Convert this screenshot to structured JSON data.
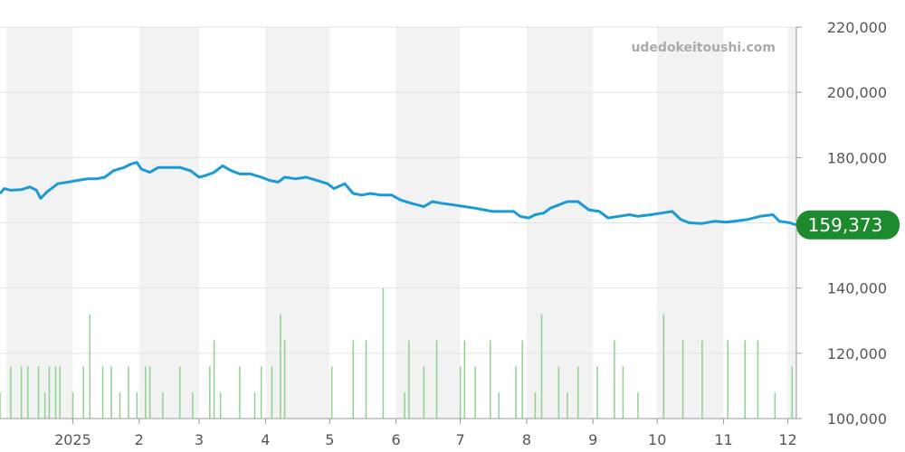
{
  "chart_data": {
    "type": "line",
    "watermark": "udedokeitoushi.com",
    "price_axis": {
      "ylim": [
        100000,
        220000
      ],
      "ticks": [
        "100,000",
        "120,000",
        "140,000",
        "160,000",
        "180,000",
        "200,000",
        "220,000"
      ],
      "tick_values": [
        100000,
        120000,
        140000,
        160000,
        180000,
        200000,
        220000
      ]
    },
    "x_labels": [
      "2025",
      "2",
      "3",
      "4",
      "5",
      "6",
      "7",
      "8",
      "9",
      "10",
      "11",
      "12"
    ],
    "x_label_dates": [
      "2025-01-01",
      "2025-02-01",
      "2025-03-01",
      "2025-04-01",
      "2025-05-01",
      "2025-06-01",
      "2025-07-01",
      "2025-08-01",
      "2025-09-01",
      "2025-10-01",
      "2025-11-01",
      "2025-12-01"
    ],
    "x_range": [
      "2024-11-28",
      "2025-12-05"
    ],
    "shaded_months": [
      "2024-12",
      "2025-02",
      "2025-04",
      "2025-06",
      "2025-08",
      "2025-10",
      "2025-12"
    ],
    "last_price": "159,373",
    "colors": {
      "line": "#1a9ad6",
      "badge": "#1e8a2e",
      "volume": "#8fd18f",
      "shade": "#f2f2f2",
      "grid": "#e3e3e3"
    },
    "series": [
      {
        "values": [
          [
            "2024-11-28",
            169000
          ],
          [
            "2024-11-30",
            170500
          ],
          [
            "2024-12-03",
            170000
          ],
          [
            "2024-12-08",
            170200
          ],
          [
            "2024-12-12",
            171000
          ],
          [
            "2024-12-15",
            170000
          ],
          [
            "2024-12-17",
            167500
          ],
          [
            "2024-12-20",
            169500
          ],
          [
            "2024-12-25",
            172000
          ],
          [
            "2024-12-30",
            172500
          ],
          [
            "2025-01-03",
            173000
          ],
          [
            "2025-01-08",
            173500
          ],
          [
            "2025-01-12",
            173500
          ],
          [
            "2025-01-16",
            174000
          ],
          [
            "2025-01-20",
            176000
          ],
          [
            "2025-01-25",
            177000
          ],
          [
            "2025-01-28",
            178000
          ],
          [
            "2025-01-31",
            178500
          ],
          [
            "2025-02-02",
            176500
          ],
          [
            "2025-02-06",
            175500
          ],
          [
            "2025-02-10",
            177000
          ],
          [
            "2025-02-15",
            177000
          ],
          [
            "2025-02-20",
            177000
          ],
          [
            "2025-02-25",
            176000
          ],
          [
            "2025-03-01",
            174000
          ],
          [
            "2025-03-04",
            174500
          ],
          [
            "2025-03-08",
            175500
          ],
          [
            "2025-03-12",
            177500
          ],
          [
            "2025-03-16",
            176000
          ],
          [
            "2025-03-20",
            175000
          ],
          [
            "2025-03-25",
            175000
          ],
          [
            "2025-03-30",
            174000
          ],
          [
            "2025-04-03",
            173000
          ],
          [
            "2025-04-07",
            172500
          ],
          [
            "2025-04-10",
            174000
          ],
          [
            "2025-04-15",
            173500
          ],
          [
            "2025-04-20",
            174000
          ],
          [
            "2025-04-25",
            173000
          ],
          [
            "2025-04-30",
            172000
          ],
          [
            "2025-05-03",
            170500
          ],
          [
            "2025-05-08",
            172000
          ],
          [
            "2025-05-12",
            169000
          ],
          [
            "2025-05-16",
            168500
          ],
          [
            "2025-05-20",
            169000
          ],
          [
            "2025-05-25",
            168500
          ],
          [
            "2025-05-30",
            168500
          ],
          [
            "2025-06-03",
            167000
          ],
          [
            "2025-06-08",
            166000
          ],
          [
            "2025-06-11",
            165500
          ],
          [
            "2025-06-14",
            165000
          ],
          [
            "2025-06-18",
            166500
          ],
          [
            "2025-06-22",
            166000
          ],
          [
            "2025-06-28",
            165500
          ],
          [
            "2025-07-03",
            165000
          ],
          [
            "2025-07-08",
            164500
          ],
          [
            "2025-07-12",
            164000
          ],
          [
            "2025-07-16",
            163500
          ],
          [
            "2025-07-21",
            163500
          ],
          [
            "2025-07-26",
            163500
          ],
          [
            "2025-07-29",
            162000
          ],
          [
            "2025-08-02",
            161500
          ],
          [
            "2025-08-05",
            162500
          ],
          [
            "2025-08-09",
            163000
          ],
          [
            "2025-08-12",
            164500
          ],
          [
            "2025-08-16",
            165500
          ],
          [
            "2025-08-20",
            166500
          ],
          [
            "2025-08-25",
            166500
          ],
          [
            "2025-08-30",
            164000
          ],
          [
            "2025-09-04",
            163500
          ],
          [
            "2025-09-08",
            161500
          ],
          [
            "2025-09-13",
            162000
          ],
          [
            "2025-09-18",
            162500
          ],
          [
            "2025-09-22",
            162000
          ],
          [
            "2025-09-28",
            162500
          ],
          [
            "2025-10-03",
            163000
          ],
          [
            "2025-10-08",
            163500
          ],
          [
            "2025-10-12",
            161000
          ],
          [
            "2025-10-16",
            160000
          ],
          [
            "2025-10-22",
            159800
          ],
          [
            "2025-10-28",
            160500
          ],
          [
            "2025-11-02",
            160200
          ],
          [
            "2025-11-06",
            160500
          ],
          [
            "2025-11-12",
            161000
          ],
          [
            "2025-11-18",
            162000
          ],
          [
            "2025-11-24",
            162500
          ],
          [
            "2025-11-27",
            160500
          ],
          [
            "2025-12-02",
            160000
          ],
          [
            "2025-12-05",
            159373
          ]
        ]
      }
    ],
    "volume": [
      {
        "date": "2024-11-28",
        "level": 8
      },
      {
        "date": "2024-12-03",
        "level": 16
      },
      {
        "date": "2024-12-08",
        "level": 16
      },
      {
        "date": "2024-12-11",
        "level": 16
      },
      {
        "date": "2024-12-16",
        "level": 16
      },
      {
        "date": "2024-12-19",
        "level": 8
      },
      {
        "date": "2024-12-21",
        "level": 16
      },
      {
        "date": "2024-12-24",
        "level": 16
      },
      {
        "date": "2024-12-26",
        "level": 16
      },
      {
        "date": "2025-01-01",
        "level": 8
      },
      {
        "date": "2025-01-06",
        "level": 16
      },
      {
        "date": "2025-01-09",
        "level": 32
      },
      {
        "date": "2025-01-15",
        "level": 16
      },
      {
        "date": "2025-01-19",
        "level": 16
      },
      {
        "date": "2025-01-23",
        "level": 8
      },
      {
        "date": "2025-01-27",
        "level": 16
      },
      {
        "date": "2025-01-31",
        "level": 8
      },
      {
        "date": "2025-02-04",
        "level": 16
      },
      {
        "date": "2025-02-06",
        "level": 16
      },
      {
        "date": "2025-02-12",
        "level": 8
      },
      {
        "date": "2025-02-20",
        "level": 16
      },
      {
        "date": "2025-02-26",
        "level": 8
      },
      {
        "date": "2025-03-06",
        "level": 16
      },
      {
        "date": "2025-03-08",
        "level": 24
      },
      {
        "date": "2025-03-11",
        "level": 8
      },
      {
        "date": "2025-03-20",
        "level": 16
      },
      {
        "date": "2025-03-27",
        "level": 8
      },
      {
        "date": "2025-03-30",
        "level": 16
      },
      {
        "date": "2025-04-04",
        "level": 16
      },
      {
        "date": "2025-04-08",
        "level": 32
      },
      {
        "date": "2025-04-10",
        "level": 24
      },
      {
        "date": "2025-05-02",
        "level": 16
      },
      {
        "date": "2025-05-12",
        "level": 24
      },
      {
        "date": "2025-05-18",
        "level": 24
      },
      {
        "date": "2025-05-26",
        "level": 40
      },
      {
        "date": "2025-06-05",
        "level": 8
      },
      {
        "date": "2025-06-07",
        "level": 24
      },
      {
        "date": "2025-06-14",
        "level": 16
      },
      {
        "date": "2025-06-20",
        "level": 24
      },
      {
        "date": "2025-07-01",
        "level": 16
      },
      {
        "date": "2025-07-03",
        "level": 24
      },
      {
        "date": "2025-07-08",
        "level": 16
      },
      {
        "date": "2025-07-15",
        "level": 24
      },
      {
        "date": "2025-07-19",
        "level": 8
      },
      {
        "date": "2025-07-27",
        "level": 16
      },
      {
        "date": "2025-07-30",
        "level": 24
      },
      {
        "date": "2025-08-05",
        "level": 8
      },
      {
        "date": "2025-08-08",
        "level": 32
      },
      {
        "date": "2025-08-16",
        "level": 16
      },
      {
        "date": "2025-08-20",
        "level": 8
      },
      {
        "date": "2025-08-25",
        "level": 16
      },
      {
        "date": "2025-09-03",
        "level": 16
      },
      {
        "date": "2025-09-11",
        "level": 24
      },
      {
        "date": "2025-09-15",
        "level": 16
      },
      {
        "date": "2025-09-22",
        "level": 8
      },
      {
        "date": "2025-10-04",
        "level": 32
      },
      {
        "date": "2025-10-13",
        "level": 24
      },
      {
        "date": "2025-10-22",
        "level": 24
      },
      {
        "date": "2025-11-03",
        "level": 24
      },
      {
        "date": "2025-11-11",
        "level": 24
      },
      {
        "date": "2025-11-17",
        "level": 24
      },
      {
        "date": "2025-11-25",
        "level": 8
      },
      {
        "date": "2025-12-03",
        "level": 16
      }
    ]
  }
}
